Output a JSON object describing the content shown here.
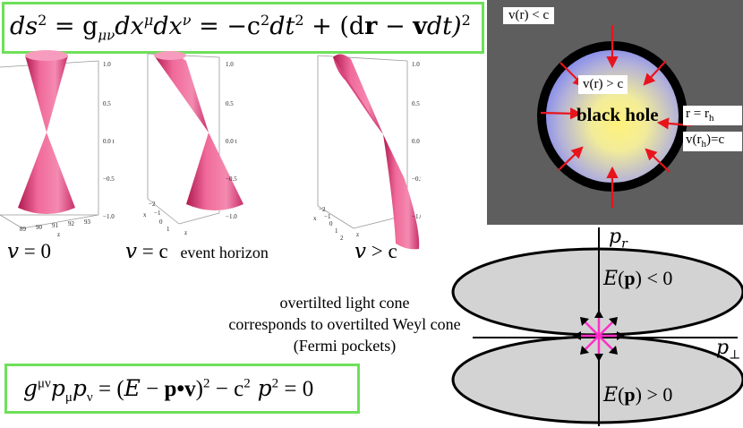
{
  "top_equation": {
    "lhs": "ds",
    "eq1": "= g",
    "sub_munu": "μν",
    "dx1": "dx",
    "sup_mu": "μ",
    "dx2": "dx",
    "sup_nu": "ν",
    "rhs1": "= −c",
    "rhs2": "dt",
    "rhs3": "+ (d",
    "r": "r",
    "minus": " − ",
    "v": "v",
    "rhs4": "dt)",
    "sq": "2"
  },
  "cones": [
    {
      "caption_var": "v",
      "caption_rest": "= 0",
      "axis_ticks": [
        "1.0",
        "0.5",
        "0.0 t",
        "−0.5",
        "−1.0"
      ],
      "bottom_ticks": [
        "89",
        "90",
        "91",
        "92",
        "93"
      ],
      "axis_x": "z"
    },
    {
      "caption_var": "v",
      "caption_rest": "= c",
      "extra": "event horizon",
      "axis_ticks": [
        "1.0",
        "0.5",
        "0.0 t",
        "−0.5",
        "−1.0"
      ],
      "bottom_ticks": [
        "−2",
        "−1",
        "0",
        "1"
      ],
      "axis_x": "x",
      "axis_z": "z"
    },
    {
      "caption_var": "v",
      "caption_rest": "> c",
      "axis_ticks": [
        "1.0",
        "0.5",
        "0.0 t",
        "−0.5",
        "−1.0"
      ],
      "bottom_ticks": [
        "−2",
        "−1",
        "0",
        "1",
        "2"
      ],
      "axis_x": "x",
      "axis_z": "z"
    }
  ],
  "black_hole": {
    "outside_label": "v(r) < c",
    "inside_label": "v(r) > c",
    "center_label": "black hole",
    "radius_label": "r = r",
    "radius_sub": "h",
    "horizon_label_pre": "v(r",
    "horizon_sub": "h",
    "horizon_label_post": ")=c",
    "colors": {
      "panel": "#5e5e5e",
      "ring": "#000000",
      "core": "#fff27a",
      "edge": "#7f86f0",
      "arrows": "#e8141c"
    }
  },
  "overtilted_text": [
    "overtilted light cone",
    "corresponds to overtilted Weyl cone",
    "(Fermi pockets)"
  ],
  "fermi": {
    "axis_p_r": "p",
    "axis_p_r_sub": "r",
    "axis_p_perp": "p",
    "axis_p_perp_sub": "⊥",
    "upper_label_E": "E",
    "upper_label_p": "p",
    "upper_label_rest": "< 0",
    "lower_label_E": "E",
    "lower_label_p": "p",
    "lower_label_rest": "> 0",
    "colors": {
      "pocket": "#d3d3d3",
      "arrows": "#ff2ec8"
    }
  },
  "bottom_equation": {
    "g": "g",
    "sup": "μν",
    "p1": "p",
    "sub1": "μ",
    "p2": "p",
    "sub2": "ν",
    "eq1": " = (",
    "E": "E",
    "minus": " − ",
    "pv": "p•v",
    "close": ")",
    "sq1": "2",
    "minus2": " − c",
    "sq2": "2",
    "p3": " p",
    "sq3": "2",
    "eq0": " = 0"
  },
  "accent_color": "#6ee05a"
}
